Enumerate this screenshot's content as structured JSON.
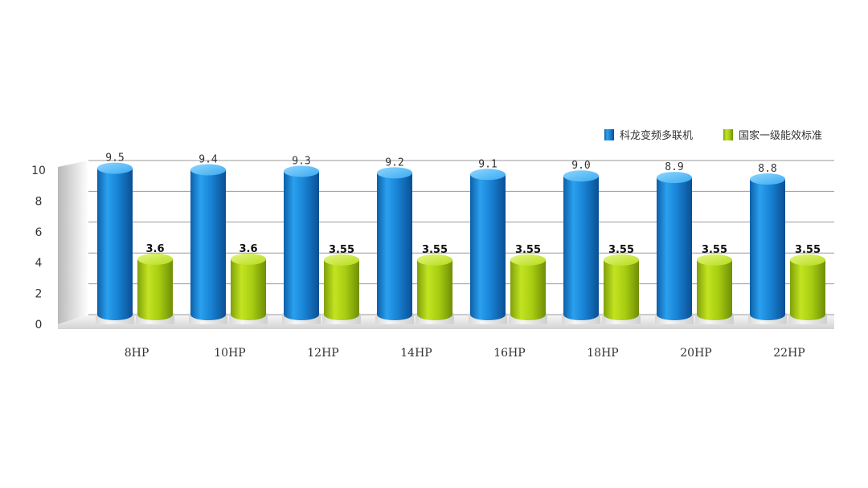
{
  "chart_data": {
    "type": "bar",
    "categories": [
      "8HP",
      "10HP",
      "12HP",
      "14HP",
      "16HP",
      "18HP",
      "20HP",
      "22HP"
    ],
    "series": [
      {
        "name": "科龙变频多联机",
        "values": [
          9.5,
          9.4,
          9.3,
          9.2,
          9.1,
          9.0,
          8.9,
          8.8
        ],
        "labels": [
          "9.5",
          "9.4",
          "9.3",
          "9.2",
          "9.1",
          "9.0",
          "8.9",
          "8.8"
        ],
        "color": "#1e8fe0"
      },
      {
        "name": "国家一级能效标准",
        "values": [
          3.6,
          3.6,
          3.55,
          3.55,
          3.55,
          3.55,
          3.55,
          3.55
        ],
        "labels": [
          "3.6",
          "3.6",
          "3.55",
          "3.55",
          "3.55",
          "3.55",
          "3.55",
          "3.55"
        ],
        "color": "#a6cf12"
      }
    ],
    "yticks": [
      "0",
      "2",
      "4",
      "6",
      "8",
      "10"
    ],
    "ylim": [
      0,
      10
    ],
    "grid": true,
    "legend_position": "top-right"
  }
}
